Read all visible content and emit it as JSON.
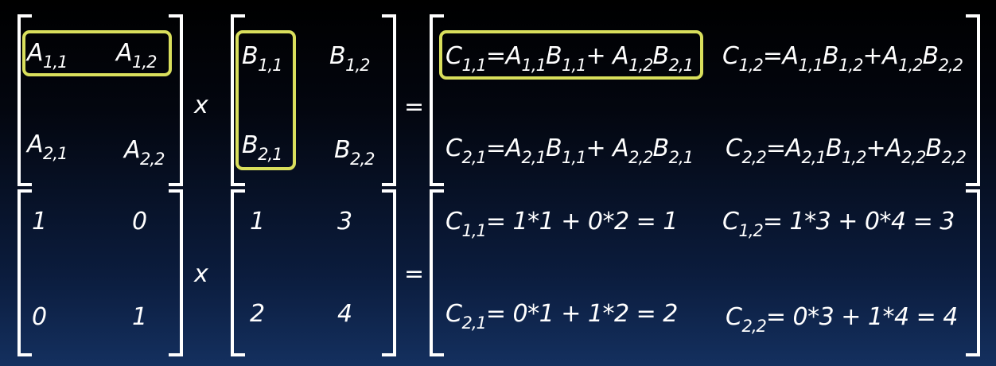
{
  "row1": {
    "A": {
      "a11": "A",
      "a11s": "1,1",
      "a12": "A",
      "a12s": "1,2",
      "a21": "A",
      "a21s": "2,1",
      "a22": "A",
      "a22s": "2,2"
    },
    "B": {
      "b11": "B",
      "b11s": "1,1",
      "b12": "B",
      "b12s": "1,2",
      "b21": "B",
      "b21s": "2,1",
      "b22": "B",
      "b22s": "2,2"
    },
    "op_times": "x",
    "op_equals": "=",
    "C": {
      "c11": [
        "C",
        "1,1",
        "=A",
        "1,1",
        "B",
        "1,1",
        "+ A",
        "1,2",
        "B",
        "2,1"
      ],
      "c12": [
        "C",
        "1,2",
        "=A",
        "1,1",
        "B",
        "1,2",
        "+A",
        "1,2",
        "B",
        "2,2"
      ],
      "c21": [
        "C",
        "2,1",
        "=A",
        "2,1",
        "B",
        "1,1",
        "+ A",
        "2,2",
        "B",
        "2,1"
      ],
      "c22": [
        "C",
        "2,2",
        "=A",
        "2,1",
        "B",
        "1,2",
        "+A",
        "2,2",
        "B",
        "2,2"
      ]
    }
  },
  "row2": {
    "A": {
      "a11": "1",
      "a12": "0",
      "a21": "0",
      "a22": "1"
    },
    "B": {
      "b11": "1",
      "b12": "3",
      "b21": "2",
      "b22": "4"
    },
    "op_times": "x",
    "op_equals": "=",
    "C": {
      "c11": {
        "C": "C",
        "sub": "1,1",
        "expr": "= 1*1 + 0*2 = 1"
      },
      "c12": {
        "C": "C",
        "sub": "1,2",
        "expr": "= 1*3 + 0*4 = 3"
      },
      "c21": {
        "C": "C",
        "sub": "2,1",
        "expr": "= 0*1 +  1*2 = 2"
      },
      "c22": {
        "C": "C",
        "sub": "2,2",
        "expr": "= 0*3 + 1*4 = 4"
      }
    }
  },
  "colors": {
    "highlight": "#d9df5c",
    "text": "#ffffff",
    "background_top": "#000000",
    "background_bottom": "#14305f"
  }
}
